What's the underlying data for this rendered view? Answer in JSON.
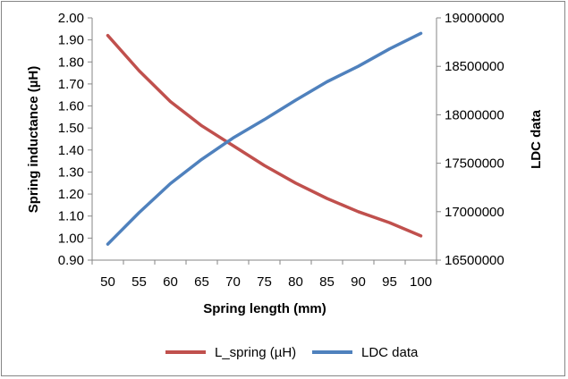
{
  "chart_data": {
    "type": "line",
    "xlabel": "Spring length (mm)",
    "ylabel": "Spring inductance (µH)",
    "y2label": "LDC data",
    "x": [
      50,
      55,
      60,
      65,
      70,
      75,
      80,
      85,
      90,
      95,
      100
    ],
    "xlim": [
      47.5,
      102.5
    ],
    "ylim": [
      0.9,
      2.0
    ],
    "y2lim": [
      16500000,
      19000000
    ],
    "yticks": [
      "0.90",
      "1.00",
      "1.10",
      "1.20",
      "1.30",
      "1.40",
      "1.50",
      "1.60",
      "1.70",
      "1.80",
      "1.90",
      "2.00"
    ],
    "y2ticks": [
      "16500000",
      "17000000",
      "17500000",
      "18000000",
      "18500000",
      "19000000"
    ],
    "xticks": [
      "50",
      "55",
      "60",
      "65",
      "70",
      "75",
      "80",
      "85",
      "90",
      "95",
      "100"
    ],
    "grid": false,
    "legend_position": "bottom",
    "series": [
      {
        "name": "L_spring (µH)",
        "axis": "left",
        "color": "#c0504d",
        "values": [
          1.92,
          1.76,
          1.62,
          1.51,
          1.42,
          1.33,
          1.25,
          1.18,
          1.12,
          1.07,
          1.01
        ]
      },
      {
        "name": "LDC data",
        "axis": "right",
        "color": "#4f81bd",
        "values": [
          16665000,
          16990000,
          17290000,
          17540000,
          17760000,
          17950000,
          18150000,
          18340000,
          18500000,
          18680000,
          18840000
        ]
      }
    ]
  }
}
